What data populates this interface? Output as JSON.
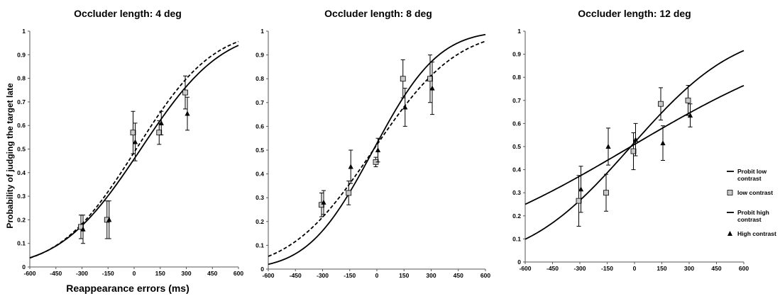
{
  "chart_data": [
    {
      "type": "scatter",
      "title": "Occluder length: 4 deg",
      "xlabel": "Reappearance errors (ms)",
      "ylabel": "Probability of judging the target late",
      "xlim": [
        -600,
        600
      ],
      "ylim": [
        0,
        1
      ],
      "xticks": [
        "-600",
        "-450",
        "-300",
        "-150",
        "0",
        "150",
        "300",
        "450",
        "600"
      ],
      "yticks": [
        "0",
        "0.1",
        "0.2",
        "0.3",
        "0.4",
        "0.5",
        "0.6",
        "0.7",
        "0.8",
        "0.9",
        "1"
      ],
      "series": [
        {
          "name": "low contrast",
          "x": [
            -300,
            -150,
            0,
            150,
            300
          ],
          "y": [
            0.17,
            0.2,
            0.57,
            0.57,
            0.74
          ],
          "err": [
            0.05,
            0.08,
            0.09,
            0.05,
            0.07
          ]
        },
        {
          "name": "High contrast",
          "x": [
            -300,
            -150,
            0,
            150,
            300
          ],
          "y": [
            0.16,
            0.2,
            0.53,
            0.61,
            0.65
          ],
          "err": [
            0.06,
            0.08,
            0.08,
            0.05,
            0.07
          ]
        }
      ],
      "fits": [
        {
          "name": "Probit low contrast",
          "mu": 12,
          "sigma": 345
        },
        {
          "name": "Probit high contrast",
          "mu": 38,
          "sigma": 362
        }
      ]
    },
    {
      "type": "scatter",
      "title": "Occluder length: 8 deg",
      "xlim": [
        -600,
        600
      ],
      "ylim": [
        0,
        1
      ],
      "xticks": [
        "-600",
        "-450",
        "-300",
        "-150",
        "0",
        "150",
        "300",
        "450",
        "600"
      ],
      "yticks": [
        "0",
        "0.1",
        "0.2",
        "0.3",
        "0.4",
        "0.5",
        "0.6",
        "0.7",
        "0.8",
        "0.9",
        "1"
      ],
      "series": [
        {
          "name": "low contrast",
          "x": [
            -300,
            -150,
            0,
            150,
            300
          ],
          "y": [
            0.27,
            0.32,
            0.45,
            0.8,
            0.8
          ],
          "err": [
            0.05,
            0.05,
            0.02,
            0.08,
            0.1
          ]
        },
        {
          "name": "High contrast",
          "x": [
            -300,
            -150,
            0,
            150,
            300
          ],
          "y": [
            0.28,
            0.43,
            0.5,
            0.68,
            0.76
          ],
          "err": [
            0.05,
            0.07,
            0.05,
            0.08,
            0.11
          ]
        }
      ],
      "fits": [
        {
          "name": "Probit low contrast",
          "mu": -20,
          "sigma": 360
        },
        {
          "name": "Probit high contrast",
          "mu": -20,
          "sigma": 283
        }
      ]
    },
    {
      "type": "scatter",
      "title": "Occluder length: 12 deg",
      "xlim": [
        -600,
        600
      ],
      "ylim": [
        0,
        1
      ],
      "xticks": [
        "-600",
        "-450",
        "-300",
        "-150",
        "0",
        "150",
        "300",
        "450",
        "600"
      ],
      "yticks": [
        "0",
        "0.1",
        "0.2",
        "0.3",
        "0.4",
        "0.5",
        "0.6",
        "0.7",
        "0.8",
        "0.9",
        "1"
      ],
      "series": [
        {
          "name": "low contrast",
          "x": [
            -300,
            -150,
            0,
            150,
            300
          ],
          "y": [
            0.265,
            0.3,
            0.48,
            0.685,
            0.7
          ],
          "err": [
            0.11,
            0.08,
            0.08,
            0.07,
            0.065
          ]
        },
        {
          "name": "High contrast",
          "x": [
            -300,
            -150,
            0,
            150,
            300
          ],
          "y": [
            0.315,
            0.5,
            0.53,
            0.515,
            0.635
          ],
          "err": [
            0.1,
            0.08,
            0.07,
            0.075,
            0.05
          ]
        }
      ],
      "fits": [
        {
          "name": "Probit low contrast",
          "mu": -20,
          "sigma": 860
        },
        {
          "name": "Probit high contrast",
          "mu": -20,
          "sigma": 450
        }
      ]
    }
  ],
  "legend": [
    {
      "label_lines": [
        "Probit low",
        "contrast"
      ],
      "kind": "line"
    },
    {
      "label_lines": [
        "low contrast"
      ],
      "kind": "square"
    },
    {
      "label_lines": [
        "Probit high",
        "contrast"
      ],
      "kind": "line"
    },
    {
      "label_lines": [
        "High contrast"
      ],
      "kind": "triangle"
    }
  ],
  "colors": {
    "ink": "#000000",
    "square_fill": "#c8c8c8",
    "background": "#ffffff"
  }
}
